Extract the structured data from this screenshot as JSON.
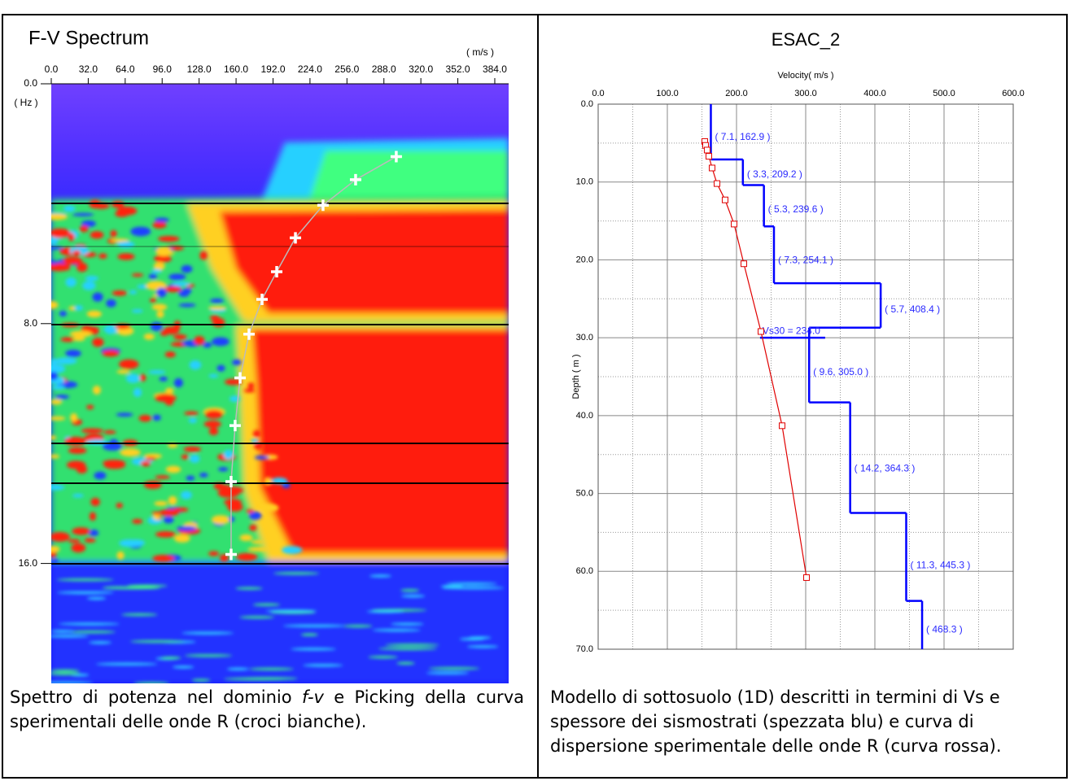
{
  "left_figure": {
    "title": "F-V Spectrum",
    "x_unit": "( m/s )",
    "y_unit": "( Hz )",
    "xlim": [
      0,
      396
    ],
    "ylim": [
      0,
      20
    ],
    "xticks": [
      {
        "value": 0,
        "label": "0.0"
      },
      {
        "value": 32,
        "label": "32.0"
      },
      {
        "value": 64,
        "label": "64.0"
      },
      {
        "value": 96,
        "label": "96.0"
      },
      {
        "value": 128,
        "label": "128.0"
      },
      {
        "value": 160,
        "label": "160.0"
      },
      {
        "value": 192,
        "label": "192.0"
      },
      {
        "value": 224,
        "label": "224.0"
      },
      {
        "value": 256,
        "label": "256.0"
      },
      {
        "value": 288,
        "label": "288.0"
      },
      {
        "value": 320,
        "label": "320.0"
      },
      {
        "value": 352,
        "label": "352.0"
      },
      {
        "value": 384,
        "label": "384.0"
      }
    ],
    "yticks": [
      {
        "value": 0,
        "label": "0.0"
      },
      {
        "value": 8,
        "label": "8.0"
      },
      {
        "value": 16,
        "label": "16.0"
      }
    ],
    "picks": {
      "velocity": [
        298.7,
        263.5,
        235.3,
        211.4,
        195.2,
        182.5,
        171.2,
        163.5,
        159.2,
        155.7,
        155.7
      ],
      "frequency": [
        2.43,
        3.2,
        4.05,
        5.14,
        6.27,
        7.19,
        8.35,
        9.81,
        11.4,
        13.27,
        15.7
      ]
    },
    "caption": [
      "Spettro di potenza nel dominio ",
      "f-v",
      " e Picking della curva sperimentali delle onde R (croci bianche)."
    ]
  },
  "right_figure": {
    "title": "ESAC_2",
    "x_label": "Velocity( m/s )",
    "y_label": "Depth ( m )",
    "xlim": [
      0,
      600
    ],
    "ylim": [
      0,
      70
    ],
    "xticks": [
      {
        "value": 0,
        "label": "0.0"
      },
      {
        "value": 100,
        "label": "100.0"
      },
      {
        "value": 200,
        "label": "200.0"
      },
      {
        "value": 300,
        "label": "300.0"
      },
      {
        "value": 400,
        "label": "400.0"
      },
      {
        "value": 500,
        "label": "500.0"
      },
      {
        "value": 600,
        "label": "600.0"
      }
    ],
    "yticks": [
      {
        "value": 0,
        "label": "0.0"
      },
      {
        "value": 10,
        "label": "10.0"
      },
      {
        "value": 20,
        "label": "20.0"
      },
      {
        "value": 30,
        "label": "30.0"
      },
      {
        "value": 40,
        "label": "40.0"
      },
      {
        "value": 50,
        "label": "50.0"
      },
      {
        "value": 60,
        "label": "60.0"
      },
      {
        "value": 70,
        "label": "70.0"
      }
    ],
    "layers": {
      "thickness": [
        7.1,
        3.3,
        5.3,
        7.3,
        5.7,
        9.6,
        14.2,
        11.3,
        null
      ],
      "velocity": [
        162.9,
        209.2,
        239.6,
        254.1,
        408.4,
        305.0,
        364.3,
        445.3,
        468.3
      ],
      "labels": [
        "( 7.1, 162.9 )",
        "( 3.3, 209.2 )",
        "( 5.3, 239.6 )",
        "( 7.3, 254.1 )",
        "( 5.7, 408.4 )",
        "( 9.6, 305.0 )",
        "( 14.2, 364.3 )",
        "( 11.3, 445.3 )",
        "( 468.3 )"
      ]
    },
    "vs30": {
      "value": 234.0,
      "depth": 30,
      "label": "Vs30 = 234.0"
    },
    "dispersion": {
      "velocity": [
        154.1,
        155.3,
        157.6,
        160.0,
        164.7,
        171.8,
        183.5,
        196.5,
        210.6,
        235.3,
        265.9,
        301.2
      ],
      "depth": [
        4.8,
        5.3,
        5.9,
        6.7,
        8.2,
        10.2,
        12.3,
        15.4,
        20.5,
        29.2,
        41.3,
        60.8
      ]
    },
    "caption": "Modello di sottosuolo (1D) descritti in termini di Vs e spessore dei sismostrati (spezzata blu) e curva di dispersione sperimentale delle onde R (curva rossa)."
  }
}
